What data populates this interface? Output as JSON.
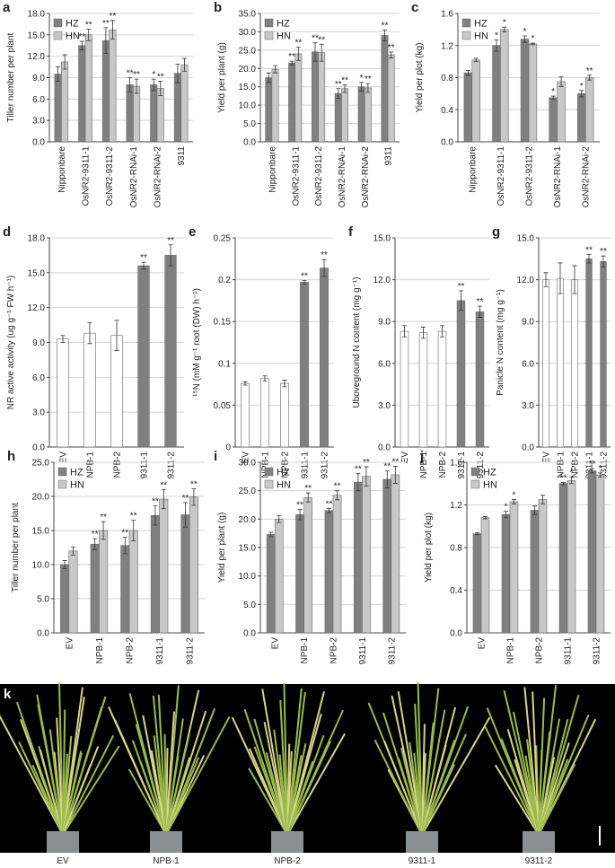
{
  "chart_data": [
    {
      "type": "bar",
      "label": "a",
      "ylabel": "Tiller number per plant",
      "categories": [
        "Nipponbare",
        "OsNR2-9311-1",
        "OsNR2-9311-2",
        "OsNR2-RNAi-1",
        "OsNR2-RNAi-2",
        "9311"
      ],
      "series": [
        {
          "name": "HZ",
          "color": "#808080",
          "values": [
            9.5,
            13.5,
            14.2,
            8.0,
            8.0,
            9.6
          ],
          "errors": [
            1.0,
            0.6,
            1.8,
            1.0,
            0.8,
            1.3
          ],
          "significance": [
            null,
            "**",
            "**",
            "**",
            "*",
            null
          ]
        },
        {
          "name": "HN",
          "color": "#c8c8c8",
          "values": [
            11.2,
            15.0,
            15.7,
            7.8,
            7.5,
            10.8
          ],
          "errors": [
            1.0,
            0.8,
            1.3,
            1.0,
            1.0,
            0.9
          ],
          "significance": [
            null,
            "**",
            "**",
            "**",
            "**",
            null
          ]
        }
      ],
      "ylim": [
        0,
        18
      ],
      "yticks": [
        {
          "value": 0,
          "label": "0.0"
        },
        {
          "value": 3,
          "label": "3.0"
        },
        {
          "value": 6,
          "label": "6.0"
        },
        {
          "value": 9,
          "label": "9.0"
        },
        {
          "value": 12,
          "label": "12.0"
        },
        {
          "value": 15,
          "label": "15.0"
        },
        {
          "value": 18,
          "label": "18.0"
        }
      ],
      "grid": true
    },
    {
      "type": "bar",
      "label": "b",
      "ylabel": "Yield per plant (g)",
      "categories": [
        "Nipponbare",
        "OsNR2-9311-1",
        "OsNR2-9311-2",
        "OsNR2-RNAi-1",
        "OsNR2-RNAi-2",
        "9311"
      ],
      "series": [
        {
          "name": "HZ",
          "color": "#808080",
          "values": [
            17.5,
            21.5,
            24.5,
            13.2,
            15.0,
            29.0
          ],
          "errors": [
            1.3,
            0.5,
            2.5,
            1.3,
            1.2,
            1.5
          ],
          "significance": [
            null,
            "**",
            "**",
            "**",
            "*",
            "**"
          ]
        },
        {
          "name": "HN",
          "color": "#c8c8c8",
          "values": [
            19.8,
            24.0,
            24.3,
            14.5,
            14.7,
            23.7
          ],
          "errors": [
            1.0,
            1.8,
            2.3,
            1.0,
            1.2,
            0.8
          ],
          "significance": [
            null,
            "**",
            "**",
            "**",
            "**",
            "**"
          ]
        }
      ],
      "ylim": [
        0,
        35
      ],
      "yticks": [
        {
          "value": 0,
          "label": "0.0"
        },
        {
          "value": 5,
          "label": "5.0"
        },
        {
          "value": 10,
          "label": "10.0"
        },
        {
          "value": 15,
          "label": "15.0"
        },
        {
          "value": 20,
          "label": "20.0"
        },
        {
          "value": 25,
          "label": "25.0"
        },
        {
          "value": 30,
          "label": "30.0"
        },
        {
          "value": 35,
          "label": "35.0"
        }
      ],
      "grid": true
    },
    {
      "type": "bar",
      "label": "c",
      "ylabel": "Yield per plot (kg)",
      "categories": [
        "Nipponbare",
        "OsNR2-9311-1",
        "OsNR2-9311-2",
        "OsNR2-RNAi-1",
        "OsNR2-RNAi-2"
      ],
      "series": [
        {
          "name": "HZ",
          "color": "#808080",
          "values": [
            0.86,
            1.2,
            1.28,
            0.55,
            0.6
          ],
          "errors": [
            0.03,
            0.07,
            0.04,
            0.02,
            0.04
          ],
          "significance": [
            null,
            "*",
            "*",
            "*",
            "*"
          ]
        },
        {
          "name": "HN",
          "color": "#c8c8c8",
          "values": [
            1.02,
            1.4,
            1.22,
            0.75,
            0.8
          ],
          "errors": [
            0.02,
            0.03,
            0.01,
            0.06,
            0.03
          ],
          "significance": [
            null,
            "*",
            "*",
            null,
            "**"
          ]
        }
      ],
      "ylim": [
        0,
        1.6
      ],
      "yticks": [
        {
          "value": 0,
          "label": "0.0"
        },
        0.4,
        0.8,
        1.2,
        1.6
      ],
      "grid": true
    },
    {
      "type": "bar",
      "label": "d",
      "ylabel": "NR active activity (ug g⁻¹ FW h⁻¹)",
      "categories": [
        "EV",
        "NPB-1",
        "NPB-2",
        "9311-1",
        "9311-2"
      ],
      "values": [
        9.3,
        9.8,
        9.6,
        15.6,
        16.5
      ],
      "errors": [
        0.3,
        0.9,
        1.3,
        0.3,
        0.9
      ],
      "colors": [
        "#ffffff",
        "#ffffff",
        "#ffffff",
        "#808080",
        "#808080"
      ],
      "significance": [
        null,
        null,
        null,
        "**",
        "**"
      ],
      "ylim": [
        0,
        18
      ],
      "yticks": [
        {
          "value": 0,
          "label": "0.0"
        },
        {
          "value": 3,
          "label": "3.0"
        },
        {
          "value": 6,
          "label": "6.0"
        },
        {
          "value": 9,
          "label": "9.0"
        },
        {
          "value": 12,
          "label": "12.0"
        },
        {
          "value": 15,
          "label": "15.0"
        },
        {
          "value": 18,
          "label": "18.0"
        }
      ],
      "grid": true
    },
    {
      "type": "bar",
      "label": "e",
      "ylabel": "¹⁵N (mM g⁻¹ root (DW) h⁻¹)",
      "categories": [
        "EV",
        "NPB-1",
        "NPB-2",
        "9311-1",
        "9311-2"
      ],
      "values": [
        0.076,
        0.082,
        0.076,
        0.197,
        0.214
      ],
      "errors": [
        0.002,
        0.003,
        0.004,
        0.002,
        0.01
      ],
      "colors": [
        "#ffffff",
        "#ffffff",
        "#ffffff",
        "#808080",
        "#808080"
      ],
      "significance": [
        null,
        null,
        null,
        "**",
        "**"
      ],
      "ylim": [
        0,
        0.25
      ],
      "yticks": [
        0,
        0.05,
        0.1,
        0.15,
        0.2,
        0.25
      ],
      "grid": true
    },
    {
      "type": "bar",
      "label": "f",
      "ylabel": "Uboveground N content (mg g⁻¹)",
      "categories": [
        "EV",
        "NPB-1",
        "NPB-2",
        "9311-1",
        "9311-2"
      ],
      "values": [
        8.3,
        8.2,
        8.3,
        10.5,
        9.7
      ],
      "errors": [
        0.4,
        0.4,
        0.4,
        0.7,
        0.4
      ],
      "colors": [
        "#ffffff",
        "#ffffff",
        "#ffffff",
        "#808080",
        "#808080"
      ],
      "significance": [
        null,
        null,
        null,
        "**",
        "**"
      ],
      "ylim": [
        0,
        15
      ],
      "yticks": [
        {
          "value": 0,
          "label": "0.0"
        },
        {
          "value": 3,
          "label": "3.0"
        },
        {
          "value": 6,
          "label": "6.0"
        },
        {
          "value": 9,
          "label": "9.0"
        },
        {
          "value": 12,
          "label": "12.0"
        },
        {
          "value": 15,
          "label": "15.0"
        }
      ],
      "grid": true
    },
    {
      "type": "bar",
      "label": "g",
      "ylabel": "Panicle N content (mg g⁻¹)",
      "categories": [
        "EV",
        "NPB-1",
        "NPB-2",
        "9311-1",
        "9311-2"
      ],
      "values": [
        12.0,
        12.1,
        12.0,
        13.5,
        13.3
      ],
      "errors": [
        0.5,
        1.1,
        1.0,
        0.3,
        0.4
      ],
      "colors": [
        "#ffffff",
        "#ffffff",
        "#ffffff",
        "#808080",
        "#808080"
      ],
      "significance": [
        null,
        null,
        null,
        "**",
        "**"
      ],
      "ylim": [
        0,
        15
      ],
      "yticks": [
        {
          "value": 0,
          "label": "0.0"
        },
        {
          "value": 3,
          "label": "3.0"
        },
        {
          "value": 6,
          "label": "6.0"
        },
        {
          "value": 9,
          "label": "9.0"
        },
        {
          "value": 12,
          "label": "12.0"
        },
        {
          "value": 15,
          "label": "15.0"
        }
      ],
      "grid": true
    },
    {
      "type": "bar",
      "label": "h",
      "ylabel": "Tiller number per plant",
      "categories": [
        "EV",
        "NPB-1",
        "NPB-2",
        "9311-1",
        "9311-2"
      ],
      "series": [
        {
          "name": "HZ",
          "color": "#808080",
          "values": [
            10.0,
            13.0,
            12.8,
            17.2,
            17.3
          ],
          "errors": [
            0.6,
            0.8,
            1.2,
            1.4,
            1.8
          ],
          "significance": [
            null,
            "**",
            "**",
            "**",
            "**"
          ]
        },
        {
          "name": "HN",
          "color": "#c8c8c8",
          "values": [
            12.0,
            15.0,
            15.0,
            19.6,
            19.9
          ],
          "errors": [
            0.6,
            1.3,
            1.5,
            1.4,
            1.2
          ],
          "significance": [
            null,
            "**",
            "**",
            "**",
            "**"
          ]
        }
      ],
      "ylim": [
        0,
        25
      ],
      "yticks": [
        {
          "value": 0,
          "label": "0.0"
        },
        {
          "value": 5,
          "label": "5.0"
        },
        {
          "value": 10,
          "label": "10.0"
        },
        {
          "value": 15,
          "label": "15.0"
        },
        {
          "value": 20,
          "label": "20.0"
        },
        {
          "value": 25,
          "label": "25.0"
        }
      ],
      "grid": true
    },
    {
      "type": "bar",
      "label": "i",
      "ylabel": "Yield per plant (g)",
      "categories": [
        "EV",
        "NPB-1",
        "NPB-2",
        "9311-1",
        "9311-2"
      ],
      "series": [
        {
          "name": "HZ",
          "color": "#808080",
          "values": [
            17.3,
            20.8,
            21.5,
            26.5,
            27.0
          ],
          "errors": [
            0.4,
            0.9,
            0.4,
            1.5,
            1.5
          ],
          "significance": [
            null,
            "**",
            "**",
            "**",
            "**"
          ]
        },
        {
          "name": "HN",
          "color": "#c8c8c8",
          "values": [
            20.0,
            23.8,
            24.2,
            27.5,
            27.8
          ],
          "errors": [
            0.6,
            0.8,
            0.8,
            1.7,
            1.5
          ],
          "significance": [
            null,
            "**",
            "**",
            "**",
            "**"
          ]
        }
      ],
      "ylim": [
        0,
        30
      ],
      "yticks": [
        {
          "value": 0,
          "label": "0.0"
        },
        {
          "value": 5,
          "label": "5.0"
        },
        {
          "value": 10,
          "label": "10.0"
        },
        {
          "value": 15,
          "label": "15.0"
        },
        {
          "value": 20,
          "label": "20.0"
        },
        {
          "value": 25,
          "label": "25.0"
        },
        {
          "value": 30,
          "label": "30.0"
        }
      ],
      "grid": true
    },
    {
      "type": "bar",
      "label": "j",
      "ylabel": "Yield per plot (kg)",
      "categories": [
        "EV",
        "NPB-1",
        "NPB-2",
        "9311-1",
        "9311-2"
      ],
      "series": [
        {
          "name": "HZ",
          "color": "#808080",
          "values": [
            0.93,
            1.11,
            1.15,
            1.4,
            1.52
          ],
          "errors": [
            0.01,
            0.03,
            0.04,
            0.01,
            0.02
          ],
          "significance": [
            null,
            "*",
            null,
            "**",
            "**"
          ]
        },
        {
          "name": "HN",
          "color": "#c8c8c8",
          "values": [
            1.08,
            1.23,
            1.25,
            1.43,
            1.48
          ],
          "errors": [
            0.01,
            0.02,
            0.04,
            0.03,
            0.02
          ],
          "significance": [
            null,
            "*",
            null,
            "*",
            "*"
          ]
        }
      ],
      "ylim": [
        0,
        1.6
      ],
      "yticks": [
        {
          "value": 0,
          "label": "0.0"
        },
        0.4,
        0.8,
        1.2,
        1.6
      ],
      "grid": true
    }
  ],
  "photo": {
    "label": "k",
    "captions": [
      "EV",
      "NPB-1",
      "NPB-2",
      "9311-1",
      "9311-2"
    ]
  }
}
